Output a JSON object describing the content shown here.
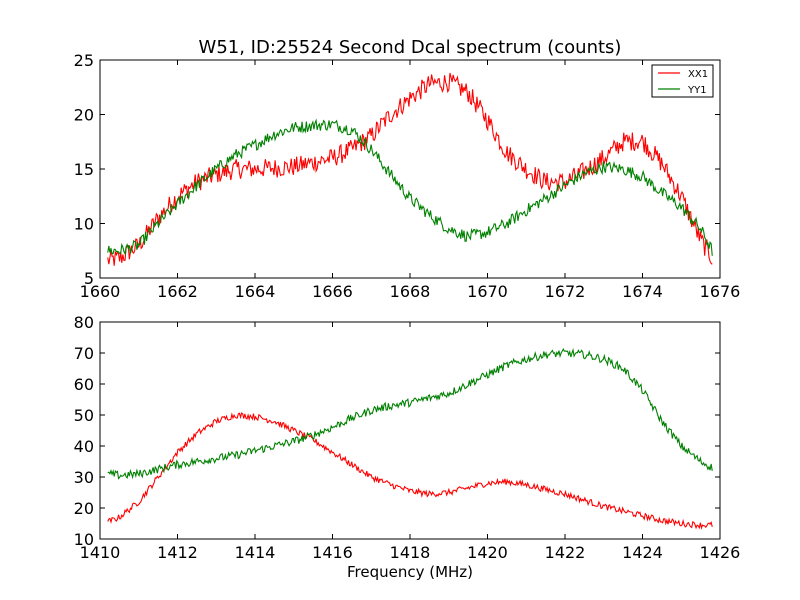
{
  "chart_data": [
    {
      "type": "line",
      "title": "W51, ID:25524 Second Dcal spectrum (counts)",
      "xlabel": "",
      "ylabel": "",
      "xlim": [
        1660,
        1676
      ],
      "ylim": [
        5,
        25
      ],
      "xticks": [
        "1660",
        "1662",
        "1664",
        "1666",
        "1668",
        "1670",
        "1672",
        "1674",
        "1676"
      ],
      "yticks": [
        "5",
        "10",
        "15",
        "20",
        "25"
      ],
      "legend": {
        "position": "top-right",
        "entries": [
          "XX1",
          "YY1"
        ]
      },
      "series": [
        {
          "name": "XX1",
          "color": "#ff0000",
          "noise": 0.9,
          "x": [
            1660.2,
            1660.5,
            1661.0,
            1661.5,
            1662.0,
            1662.5,
            1663.0,
            1663.5,
            1664.0,
            1664.5,
            1665.0,
            1665.5,
            1666.0,
            1666.5,
            1667.0,
            1667.5,
            1668.0,
            1668.5,
            1669.0,
            1669.5,
            1670.0,
            1670.5,
            1671.0,
            1671.5,
            1672.0,
            1672.5,
            1673.0,
            1673.5,
            1674.0,
            1674.5,
            1675.0,
            1675.5,
            1675.8
          ],
          "y": [
            6.6,
            6.8,
            8.0,
            10.5,
            12.5,
            13.8,
            14.5,
            15.0,
            15.0,
            15.1,
            15.2,
            15.6,
            16.0,
            16.8,
            18.0,
            20.0,
            21.5,
            22.8,
            23.0,
            22.0,
            19.5,
            16.5,
            15.0,
            13.8,
            13.8,
            14.8,
            16.0,
            17.5,
            17.6,
            15.5,
            12.5,
            8.5,
            6.8
          ]
        },
        {
          "name": "YY1",
          "color": "#008000",
          "noise": 0.55,
          "x": [
            1660.2,
            1660.5,
            1661.0,
            1661.5,
            1662.0,
            1662.5,
            1663.0,
            1663.5,
            1664.0,
            1664.5,
            1665.0,
            1665.5,
            1666.0,
            1666.5,
            1667.0,
            1667.5,
            1668.0,
            1668.5,
            1669.0,
            1669.5,
            1670.0,
            1670.5,
            1671.0,
            1671.5,
            1672.0,
            1672.5,
            1673.0,
            1673.5,
            1674.0,
            1674.5,
            1675.0,
            1675.5,
            1675.8
          ],
          "y": [
            7.5,
            7.5,
            8.0,
            10.0,
            11.8,
            13.5,
            15.0,
            16.3,
            17.2,
            18.2,
            18.8,
            19.0,
            19.1,
            18.6,
            16.8,
            14.5,
            12.3,
            10.8,
            9.5,
            8.8,
            9.2,
            10.0,
            11.2,
            12.3,
            13.5,
            14.6,
            15.2,
            15.0,
            14.3,
            12.8,
            11.5,
            9.5,
            7.5
          ]
        }
      ]
    },
    {
      "type": "line",
      "title": "",
      "xlabel": "Frequency (MHz)",
      "ylabel": "",
      "xlim": [
        1410,
        1426
      ],
      "ylim": [
        10,
        80
      ],
      "xticks": [
        "1410",
        "1412",
        "1414",
        "1416",
        "1418",
        "1420",
        "1422",
        "1424",
        "1426"
      ],
      "yticks": [
        "10",
        "20",
        "30",
        "40",
        "50",
        "60",
        "70",
        "80"
      ],
      "series": [
        {
          "color": "#ff0000",
          "noise": 1.0,
          "x": [
            1410.2,
            1410.5,
            1411.0,
            1411.5,
            1412.0,
            1412.5,
            1413.0,
            1413.5,
            1414.0,
            1414.5,
            1415.0,
            1415.5,
            1416.0,
            1416.5,
            1417.0,
            1417.5,
            1418.0,
            1418.5,
            1419.0,
            1419.5,
            1420.0,
            1420.5,
            1421.0,
            1421.5,
            1422.0,
            1422.5,
            1423.0,
            1423.5,
            1424.0,
            1424.5,
            1425.0,
            1425.5,
            1425.8
          ],
          "y": [
            15.5,
            17.0,
            22.0,
            30.0,
            38.0,
            44.0,
            48.0,
            50.0,
            49.5,
            48.0,
            45.0,
            42.0,
            38.0,
            34.0,
            30.0,
            27.5,
            25.5,
            24.5,
            25.0,
            26.5,
            28.0,
            28.5,
            27.5,
            26.0,
            24.5,
            22.5,
            20.5,
            19.0,
            17.5,
            16.0,
            15.0,
            14.5,
            14.5
          ]
        },
        {
          "color": "#008000",
          "noise": 1.3,
          "x": [
            1410.2,
            1410.5,
            1411.0,
            1411.5,
            1412.0,
            1412.5,
            1413.0,
            1413.5,
            1414.0,
            1414.5,
            1415.0,
            1415.5,
            1416.0,
            1416.5,
            1417.0,
            1417.5,
            1418.0,
            1418.5,
            1419.0,
            1419.5,
            1420.0,
            1420.5,
            1421.0,
            1421.5,
            1422.0,
            1422.5,
            1423.0,
            1423.5,
            1424.0,
            1424.5,
            1425.0,
            1425.5,
            1425.8
          ],
          "y": [
            31.0,
            30.5,
            31.0,
            32.5,
            34.0,
            35.0,
            36.0,
            37.0,
            38.5,
            40.0,
            41.5,
            43.5,
            46.0,
            49.0,
            51.5,
            53.0,
            54.0,
            55.5,
            57.0,
            60.0,
            63.0,
            66.0,
            68.0,
            69.5,
            70.0,
            69.5,
            68.0,
            65.0,
            58.0,
            48.0,
            40.0,
            35.0,
            33.0
          ]
        }
      ]
    }
  ]
}
